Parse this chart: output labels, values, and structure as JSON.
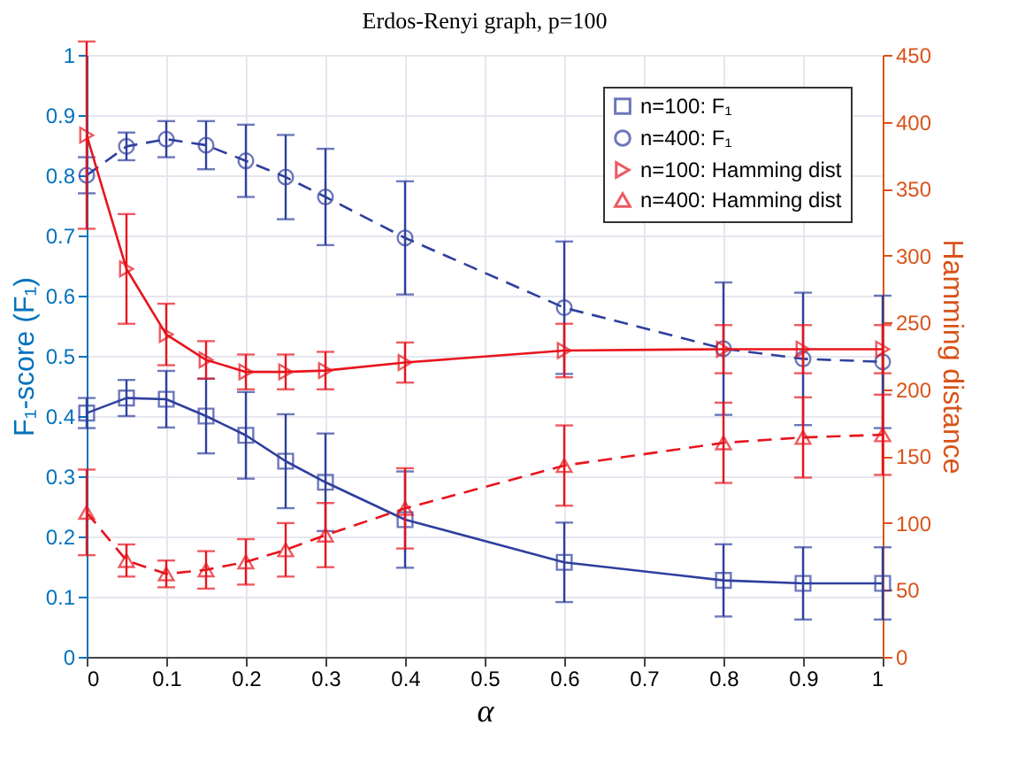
{
  "chart_data": {
    "type": "line",
    "title": "Erdos-Renyi graph, p=100",
    "xlabel": "α",
    "ylabel": "F₁-score (F₁)",
    "y2label": "Hamming distance",
    "x": [
      0,
      0.05,
      0.1,
      0.15,
      0.2,
      0.25,
      0.3,
      0.4,
      0.6,
      0.8,
      0.9,
      1
    ],
    "series": [
      {
        "name": "n=100: F₁",
        "color": "#2e3f9e",
        "marker": "square",
        "line_style": "solid",
        "values": [
          0.405,
          0.43,
          0.428,
          0.4,
          0.368,
          0.325,
          0.29,
          0.228,
          0.157,
          0.127,
          0.122,
          0.122
        ],
        "errors": [
          0.025,
          0.03,
          0.047,
          0.062,
          0.072,
          0.078,
          0.081,
          0.08,
          0.066,
          0.06,
          0.06,
          0.06
        ]
      },
      {
        "name": "n=400: F₁",
        "color": "#2e3f9e",
        "marker": "circle",
        "line_style": "dashed",
        "values": [
          0.8,
          0.848,
          0.86,
          0.85,
          0.824,
          0.797,
          0.764,
          0.696,
          0.58,
          0.512,
          0.495,
          0.49
        ],
        "errors": [
          0.03,
          0.023,
          0.03,
          0.04,
          0.06,
          0.07,
          0.08,
          0.094,
          0.11,
          0.11,
          0.11,
          0.11
        ]
      },
      {
        "name": "n=100: Hamming dist",
        "color": "#e8141c",
        "marker": "triangle-right",
        "line_style": "solid",
        "axis": "y2",
        "values": [
          390,
          290,
          241,
          222,
          213,
          213,
          214,
          220,
          229,
          230,
          230,
          230
        ],
        "errors": [
          70,
          41,
          23,
          14,
          13,
          13,
          14,
          15,
          20,
          18,
          18,
          18
        ]
      },
      {
        "name": "n=400: Hamming dist",
        "color": "#e8141c",
        "marker": "triangle-up",
        "line_style": "dashed",
        "axis": "y2",
        "values": [
          108,
          72,
          62,
          65,
          71,
          80,
          91,
          111,
          143,
          160,
          164,
          166
        ],
        "errors": [
          32,
          12,
          10,
          14,
          17,
          20,
          24,
          30,
          30,
          30,
          30,
          30
        ]
      }
    ],
    "xlim": [
      0,
      1
    ],
    "xticks": [
      0,
      0.1,
      0.2,
      0.3,
      0.4,
      0.5,
      0.6,
      0.7,
      0.8,
      0.9,
      1
    ],
    "ylim": [
      0,
      1
    ],
    "yticks": [
      0,
      0.1,
      0.2,
      0.3,
      0.4,
      0.5,
      0.6,
      0.7,
      0.8,
      0.9,
      1
    ],
    "y2lim": [
      0,
      450
    ],
    "y2ticks": [
      0,
      50,
      100,
      150,
      200,
      250,
      300,
      350,
      400,
      450
    ],
    "grid": true,
    "legend": "top right"
  }
}
